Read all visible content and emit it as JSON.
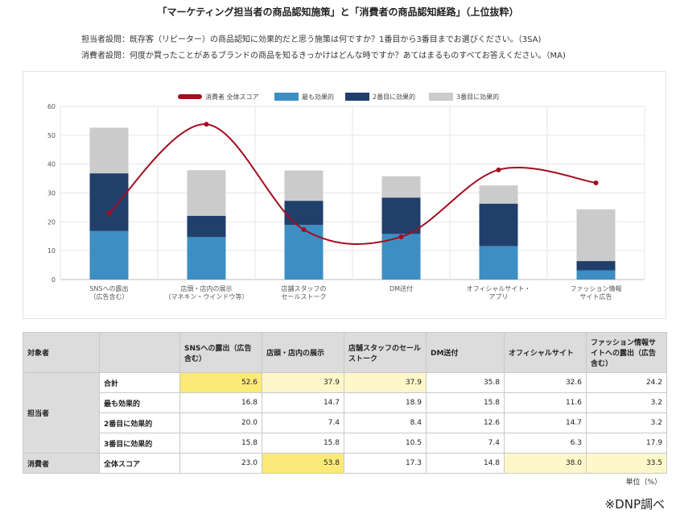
{
  "title": "「マーケティング担当者の商品認知施策」と「消費者の商品認知経路」（上位抜粋）",
  "question_marketer": "担当者設問：既存客（リピーター）の商品認知に効果的だと思う施策は何ですか？1番目から3番目までお選びください。（3SA)",
  "question_consumer": "消費者設問：何度か買ったことがあるブランドの商品を知るきっかけはどんな時ですか？あてはまるものすべてお答えください。（MA)",
  "chart_data": {
    "type": "bar",
    "stacked": true,
    "categories": [
      [
        "SNSへの露出",
        "（広告含む）"
      ],
      [
        "店頭・店内の展示",
        "（マネキン・ウインドウ等）"
      ],
      [
        "店舗スタッフの",
        "セールストーク"
      ],
      [
        "DM送付"
      ],
      [
        "オフィシャルサイト・",
        "アプリ"
      ],
      [
        "ファッション情報",
        "サイト広告"
      ]
    ],
    "series": [
      {
        "name": "最も効果的",
        "color": "#3d8ec2",
        "values": [
          16.8,
          14.7,
          18.9,
          15.8,
          11.6,
          3.2
        ]
      },
      {
        "name": "2番目に効果的",
        "color": "#213f6b",
        "values": [
          20.0,
          7.4,
          8.4,
          12.6,
          14.7,
          3.2
        ]
      },
      {
        "name": "3番目に効果的",
        "color": "#cbcbcb",
        "values": [
          15.8,
          15.8,
          10.5,
          7.4,
          6.3,
          17.9
        ]
      }
    ],
    "line_series": {
      "name": "消費者 全体スコア",
      "color": "#a30d1e",
      "values": [
        23.0,
        53.8,
        17.3,
        14.8,
        38.0,
        33.5
      ]
    },
    "legend_order": [
      "消費者 全体スコア",
      "最も効果的",
      "2番目に効果的",
      "3番目に効果的"
    ],
    "yticks": [
      0,
      10,
      20,
      30,
      40,
      50,
      60
    ],
    "ylim": [
      0,
      60
    ],
    "grid": true,
    "legend_position": "top-center"
  },
  "table": {
    "header": [
      "対象者",
      "",
      "SNSへの露出（広告含む）",
      "店頭・店内の展示",
      "店舗スタッフのセールストーク",
      "DM送付",
      "オフィシャルサイト",
      "ファッション情報サイトへの露出（広告含む）"
    ],
    "group_marketer": "担当者",
    "group_consumer": "消費者",
    "rows": [
      {
        "label": "合計",
        "values": [
          "52.6",
          "37.9",
          "37.9",
          "35.8",
          "32.6",
          "24.2"
        ]
      },
      {
        "label": "最も効果的",
        "values": [
          "16.8",
          "14.7",
          "18.9",
          "15.8",
          "11.6",
          "3.2"
        ]
      },
      {
        "label": "2番目に効果的",
        "values": [
          "20.0",
          "7.4",
          "8.4",
          "12.6",
          "14.7",
          "3.2"
        ]
      },
      {
        "label": "3番目に効果的",
        "values": [
          "15.8",
          "15.8",
          "10.5",
          "7.4",
          "6.3",
          "17.9"
        ]
      },
      {
        "label": "全体スコア",
        "values": [
          "23.0",
          "53.8",
          "17.3",
          "14.8",
          "38.0",
          "33.5"
        ]
      }
    ],
    "highlights": {
      "strong": "#fbe978",
      "light": "#fdf7c9",
      "row0": [
        "strong",
        "light",
        "light",
        "",
        "",
        ""
      ],
      "row4": [
        "",
        "strong",
        "",
        "",
        "light",
        "light"
      ]
    }
  },
  "unit": "単位（%）",
  "credit": "※DNP調べ"
}
